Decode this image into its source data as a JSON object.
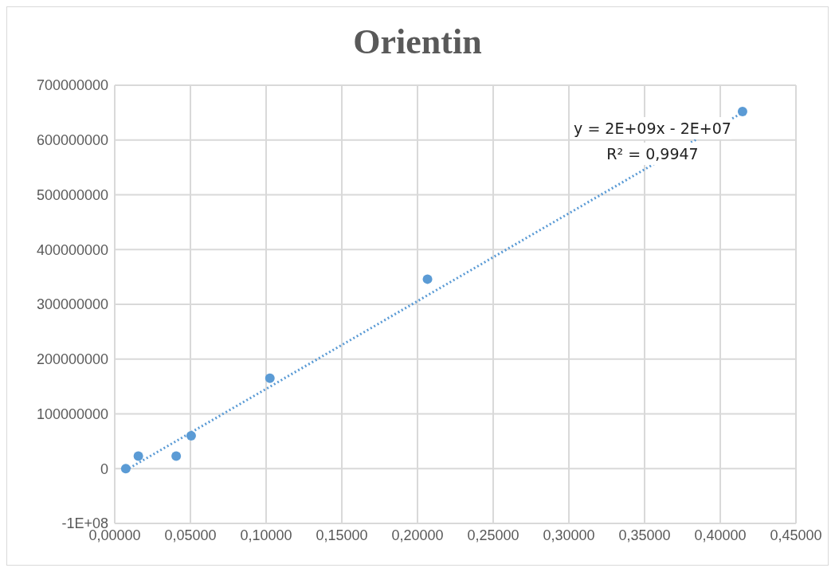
{
  "chart_data": {
    "type": "scatter",
    "title": "Orientin",
    "series": [
      {
        "color": "#5b9bd5",
        "marker": "circle",
        "x": [
          0.0073,
          0.0156,
          0.0406,
          0.0505,
          0.1025,
          0.2066,
          0.4147
        ],
        "values": [
          0,
          23000000,
          23000000,
          60000000,
          165000000,
          346000000,
          652000000
        ]
      },
      {
        "type": "line",
        "color": "#5b9bd5",
        "line_style": "dotted",
        "x": [
          0.0073,
          0.4147
        ],
        "values": [
          -3000000,
          650000000
        ]
      }
    ],
    "annotations": [
      "y = 2E+09x - 2E+07",
      "R² = 0,9947"
    ],
    "xlim": [
      0,
      0.45
    ],
    "xticks": [
      {
        "value": 0,
        "label": "0,00000"
      },
      {
        "value": 0.05,
        "label": "0,05000"
      },
      {
        "value": 0.1,
        "label": "0,10000"
      },
      {
        "value": 0.15,
        "label": "0,15000"
      },
      {
        "value": 0.2,
        "label": "0,20000"
      },
      {
        "value": 0.25,
        "label": "0,25000"
      },
      {
        "value": 0.3,
        "label": "0,30000"
      },
      {
        "value": 0.35,
        "label": "0,35000"
      },
      {
        "value": 0.4,
        "label": "0,40000"
      },
      {
        "value": 0.45,
        "label": "0,45000"
      }
    ],
    "ylim": [
      -100000000,
      700000000
    ],
    "yticks": [
      {
        "value": -100000000,
        "label": "-1E+08"
      },
      0,
      100000000,
      200000000,
      300000000,
      400000000,
      500000000,
      600000000,
      700000000
    ],
    "grid": true,
    "legend": false
  }
}
